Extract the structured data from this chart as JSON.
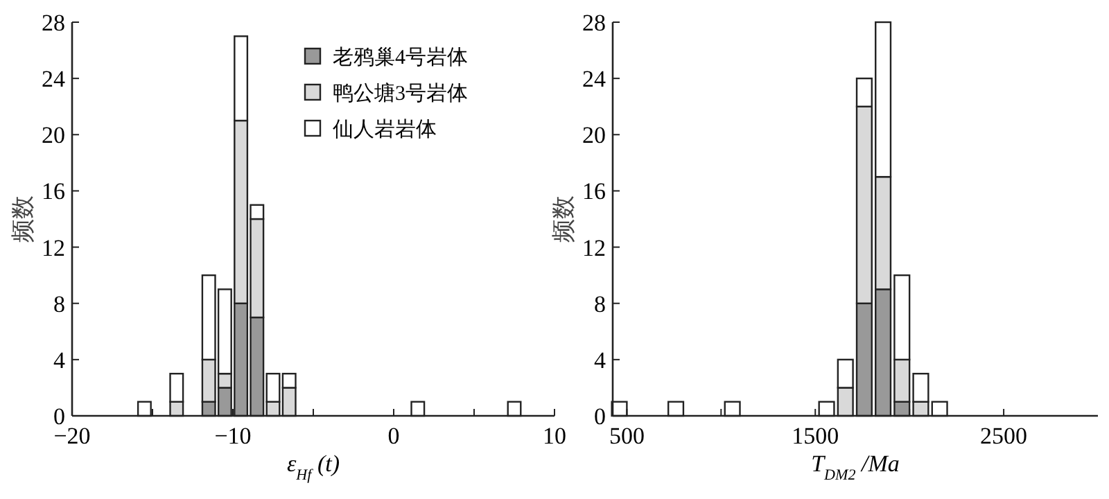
{
  "chart_data": [
    {
      "type": "bar",
      "stacked": true,
      "xlabel": "ε$_{Hf}$ (t)",
      "ylabel": "频数",
      "x": [
        -15.5,
        -13.5,
        -11.5,
        -10.5,
        -9.5,
        -8.5,
        -7.5,
        -6.5,
        1.5,
        7.5
      ],
      "xlim": [
        -20,
        10
      ],
      "xticks": [
        {
          "value": -20,
          "label": "−20"
        },
        {
          "value": -15,
          "label": null
        },
        {
          "value": -10,
          "label": "−10"
        },
        {
          "value": -5,
          "label": null
        },
        0,
        {
          "value": 5,
          "label": null
        },
        10
      ],
      "ylim": [
        0,
        28
      ],
      "yticks": [
        0,
        4,
        8,
        12,
        16,
        20,
        24,
        28
      ],
      "legend": "top right",
      "series": [
        {
          "name": "老鸦巢4号岩体",
          "color": "#999999",
          "values": [
            0,
            0,
            1,
            2,
            8,
            7,
            0,
            0,
            0,
            0
          ]
        },
        {
          "name": "鸭公塘3号岩体",
          "color": "#d9d9d9",
          "values": [
            0,
            1,
            3,
            1,
            13,
            7,
            1,
            2,
            0,
            0
          ]
        },
        {
          "name": "仙人岩岩体",
          "color": "#ffffff",
          "values": [
            1,
            2,
            6,
            6,
            6,
            1,
            2,
            1,
            1,
            1
          ]
        }
      ]
    },
    {
      "type": "bar",
      "stacked": true,
      "xlabel": "T$_{DM2}$ /Ma",
      "ylabel": "频数",
      "x": [
        460,
        760,
        1060,
        1560,
        1660,
        1760,
        1860,
        1960,
        2060,
        2160
      ],
      "xlim": [
        425,
        3000
      ],
      "xticks": [
        500,
        {
          "value": 1000,
          "label": null
        },
        1500,
        {
          "value": 2000,
          "label": null
        },
        2500
      ],
      "ylim": [
        0,
        28
      ],
      "yticks": [
        0,
        4,
        8,
        12,
        16,
        20,
        24,
        28
      ],
      "series": [
        {
          "color": "#999999",
          "values": [
            0,
            0,
            0,
            0,
            0,
            8,
            9,
            1,
            0,
            0
          ]
        },
        {
          "color": "#d9d9d9",
          "values": [
            0,
            0,
            0,
            0,
            2,
            14,
            8,
            3,
            1,
            0
          ]
        },
        {
          "color": "#ffffff",
          "values": [
            1,
            1,
            1,
            1,
            2,
            2,
            11,
            6,
            2,
            1
          ]
        }
      ]
    }
  ]
}
